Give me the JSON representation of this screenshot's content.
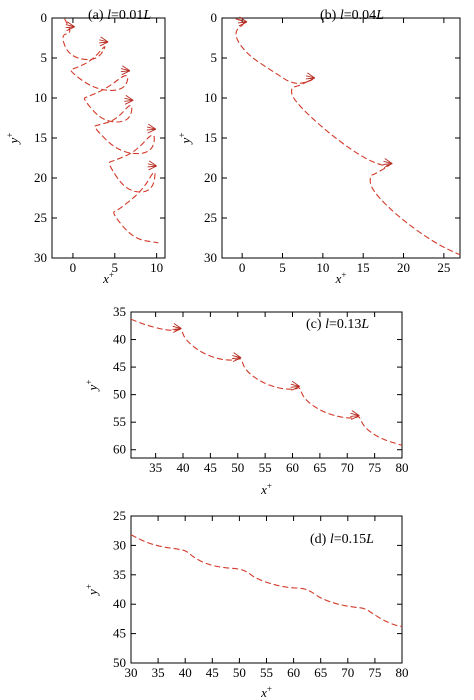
{
  "chart_data": [
    {
      "type": "line",
      "panel_label": "(a) l=0.01L",
      "xlabel": "x+",
      "ylabel": "y+",
      "xlim": [
        -2.5,
        11.0
      ],
      "ylim": [
        0,
        30
      ],
      "y_inverted": true,
      "xticks": [
        "0",
        "5",
        "10"
      ],
      "yticks": [
        "0",
        "5",
        "10",
        "15",
        "20",
        "25",
        "30"
      ],
      "series": [
        {
          "style": "dashed-red",
          "x": [
            -1,
            -0.1,
            -1.5,
            -0.4,
            2.9,
            4.2,
            2.3,
            0.3,
            -0.6,
            2.7,
            6.2,
            6.8,
            3.9,
            1.6,
            1.2,
            3.6,
            6.8,
            7.2,
            5.1,
            2.9,
            2.4,
            5.6,
            9.5,
            9.9,
            7.4,
            4.7,
            4.1,
            6.4,
            9.5,
            10.0,
            8.3,
            5.3,
            4.6,
            7.2,
            10.2
          ],
          "y": [
            0.1,
            1.9,
            2.1,
            4.9,
            5.4,
            3.0,
            5.3,
            6.3,
            6.5,
            9.0,
            9.1,
            6.6,
            8.9,
            9.9,
            10.1,
            13.0,
            13.0,
            10.3,
            12.8,
            13.4,
            13.6,
            16.9,
            17.0,
            13.9,
            16.8,
            17.9,
            18.1,
            21.7,
            21.8,
            18.5,
            21.6,
            24.1,
            24.3,
            27.6,
            28.1
          ]
        }
      ],
      "hooks": [
        [
          0.2,
          1.1
        ],
        [
          4.2,
          3.0
        ],
        [
          6.8,
          6.6
        ],
        [
          7.2,
          10.3
        ],
        [
          9.9,
          13.9
        ],
        [
          10.0,
          18.5
        ]
      ]
    },
    {
      "type": "line",
      "panel_label": "(b) l=0.04L",
      "xlabel": "x+",
      "ylabel": "y+",
      "xlim": [
        -2.5,
        27.0
      ],
      "ylim": [
        0,
        30
      ],
      "y_inverted": true,
      "xticks": [
        "0",
        "5",
        "10",
        "15",
        "20",
        "25"
      ],
      "yticks": [
        "0",
        "5",
        "10",
        "15",
        "20",
        "25",
        "30"
      ],
      "series": [
        {
          "style": "dashed-red",
          "x": [
            -0.8,
            0.6,
            -1.2,
            0.5,
            4.0,
            6.3,
            8.2,
            9.0,
            7.0,
            6.0,
            6.3,
            10.0,
            14.5,
            17.6,
            18.6,
            16.5,
            15.8,
            16.0,
            19.5,
            24.0,
            27.0
          ],
          "y": [
            0.1,
            0.5,
            1.8,
            4.5,
            6.8,
            8.3,
            8.0,
            7.5,
            8.5,
            8.7,
            10.2,
            13.8,
            17.2,
            18.6,
            18.2,
            19.5,
            19.7,
            21.5,
            25.0,
            28.2,
            29.6
          ]
        }
      ],
      "hooks": [
        [
          0.6,
          0.5
        ],
        [
          9.0,
          7.5
        ],
        [
          18.6,
          18.2
        ]
      ]
    },
    {
      "type": "line",
      "panel_label": "(c) l=0.13L",
      "xlabel": "x+",
      "ylabel": "y+",
      "xlim": [
        30.5,
        80
      ],
      "ylim": [
        35,
        61.5
      ],
      "y_inverted": true,
      "xticks": [
        "35",
        "40",
        "45",
        "50",
        "55",
        "60",
        "65",
        "70",
        "75",
        "80"
      ],
      "yticks": [
        "35",
        "40",
        "45",
        "50",
        "55",
        "60"
      ],
      "series": [
        {
          "style": "dashed-red",
          "x": [
            30.5,
            33,
            36,
            38.2,
            39.7,
            40.3,
            43,
            46.5,
            49.6,
            50.6,
            51.3,
            54,
            57.5,
            60.6,
            61.3,
            62,
            65,
            68.5,
            71.4,
            72.2,
            73,
            76,
            80
          ],
          "y": [
            36.3,
            37.3,
            38.1,
            38.4,
            38.0,
            39.9,
            42.2,
            43.6,
            43.8,
            43.3,
            45.5,
            47.6,
            48.9,
            49.1,
            48.5,
            50.7,
            52.9,
            54.1,
            54.3,
            53.8,
            55.9,
            58.0,
            59.2
          ]
        }
      ],
      "hooks": [
        [
          39.7,
          38.0
        ],
        [
          50.6,
          43.3
        ],
        [
          61.3,
          48.5
        ],
        [
          72.2,
          53.8
        ]
      ]
    },
    {
      "type": "line",
      "panel_label": "(d) l=0.15L",
      "xlabel": "x+",
      "ylabel": "y+",
      "xlim": [
        30,
        80
      ],
      "ylim": [
        25,
        50
      ],
      "y_inverted": true,
      "xticks": [
        "30",
        "35",
        "40",
        "45",
        "50",
        "55",
        "60",
        "65",
        "70",
        "75",
        "80"
      ],
      "yticks": [
        "25",
        "30",
        "35",
        "40",
        "45",
        "50"
      ],
      "series": [
        {
          "style": "dashed-red",
          "x": [
            30,
            33,
            36,
            38.5,
            40.2,
            41.5,
            44,
            47,
            50.2,
            51.6,
            53,
            56,
            59,
            62,
            63.5,
            65,
            68,
            71,
            73.2,
            74.6,
            76.5,
            78.5,
            80
          ],
          "y": [
            28.2,
            29.6,
            30.3,
            30.6,
            30.9,
            32.0,
            33.2,
            33.8,
            34.0,
            34.6,
            35.6,
            36.6,
            37.2,
            37.3,
            38.0,
            39.0,
            40.0,
            40.5,
            40.7,
            41.6,
            42.7,
            43.5,
            43.8
          ]
        }
      ],
      "hooks": []
    }
  ]
}
